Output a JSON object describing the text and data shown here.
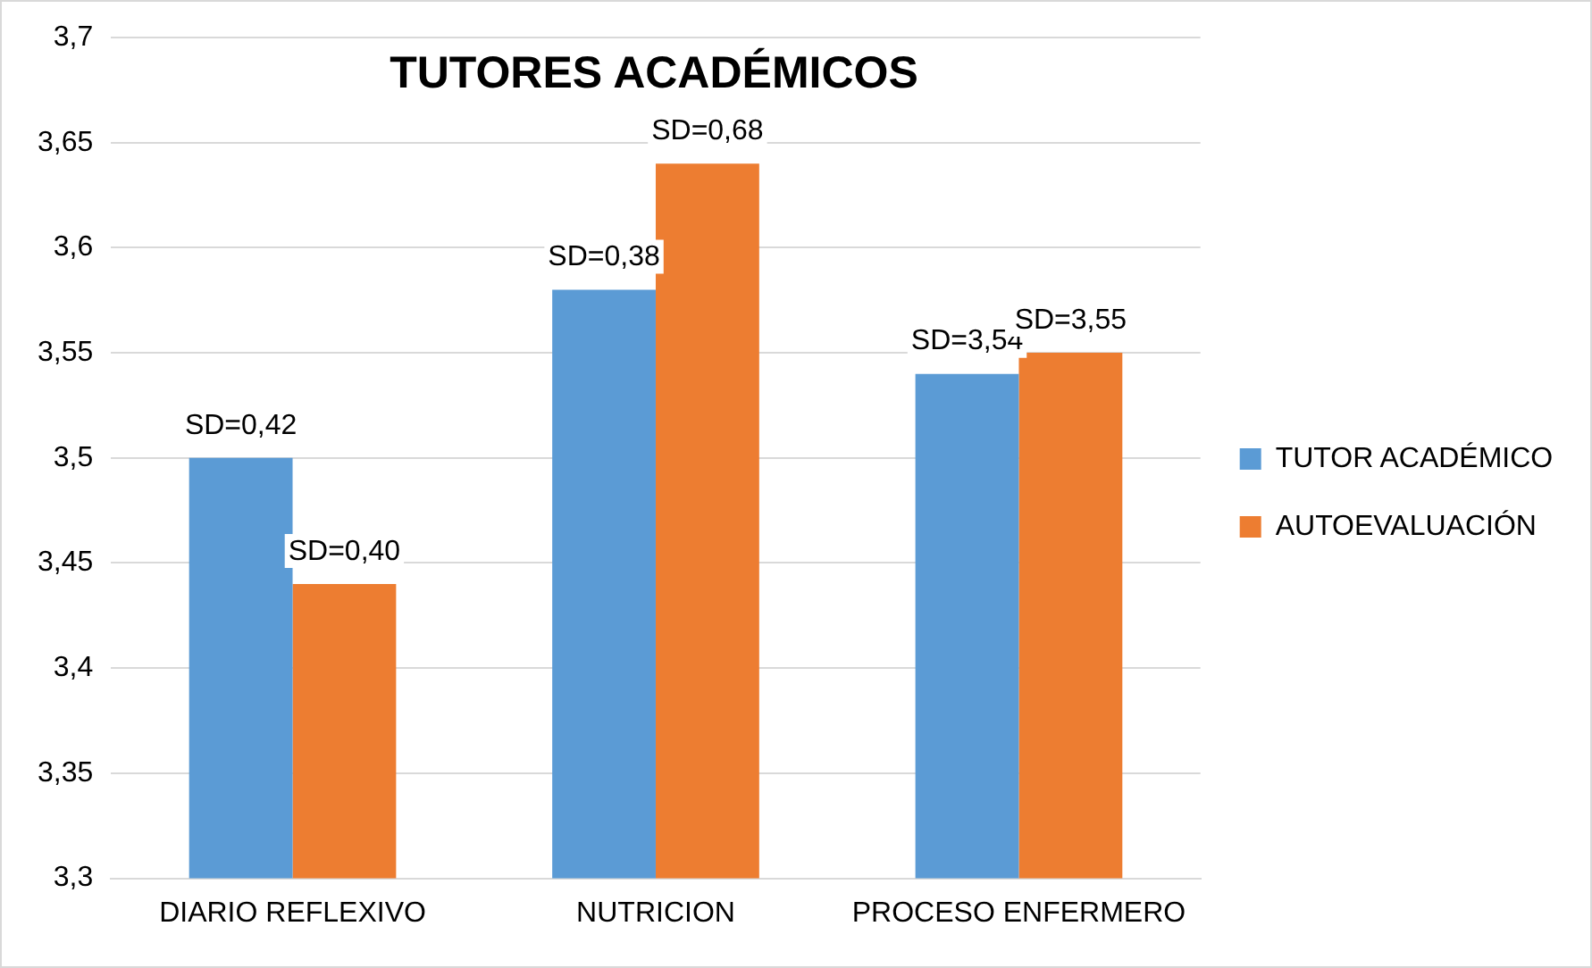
{
  "chart_data": {
    "type": "bar",
    "title": "TUTORES ACADÉMICOS",
    "categories": [
      "DIARIO REFLEXIVO",
      "NUTRICION",
      "PROCESO ENFERMERO"
    ],
    "series": [
      {
        "name": "TUTOR ACADÉMICO",
        "color": "#5b9bd5",
        "values": [
          3.5,
          3.58,
          3.54
        ]
      },
      {
        "name": "AUTOEVALUACIÓN",
        "color": "#ed7d31",
        "values": [
          3.44,
          3.64,
          3.55
        ]
      }
    ],
    "annotations": [
      {
        "text": "SD=0,42",
        "x": "DIARIO REFLEXIVO",
        "y": 3.5
      },
      {
        "text": "SD=0,40",
        "x": "DIARIO REFLEXIVO",
        "y": 3.44
      },
      {
        "text": "SD=0,38",
        "x": "NUTRICION",
        "y": 3.58
      },
      {
        "text": "SD=0,68",
        "x": "NUTRICION",
        "y": 3.64
      },
      {
        "text": "SD=3,54",
        "x": "PROCESO ENFERMERO",
        "y": 3.54
      },
      {
        "text": "SD=3,55",
        "x": "PROCESO ENFERMERO",
        "y": 3.55
      }
    ],
    "ylim": [
      3.3,
      3.7
    ],
    "yticks": [
      {
        "value": 3.3,
        "label": "3,3"
      },
      {
        "value": 3.35,
        "label": "3,35"
      },
      {
        "value": 3.4,
        "label": "3,4"
      },
      {
        "value": 3.45,
        "label": "3,45"
      },
      {
        "value": 3.5,
        "label": "3,5"
      },
      {
        "value": 3.55,
        "label": "3,55"
      },
      {
        "value": 3.6,
        "label": "3,6"
      },
      {
        "value": 3.65,
        "label": "3,65"
      },
      {
        "value": 3.7,
        "label": "3,7"
      }
    ],
    "grid": "y",
    "legend": "right"
  }
}
